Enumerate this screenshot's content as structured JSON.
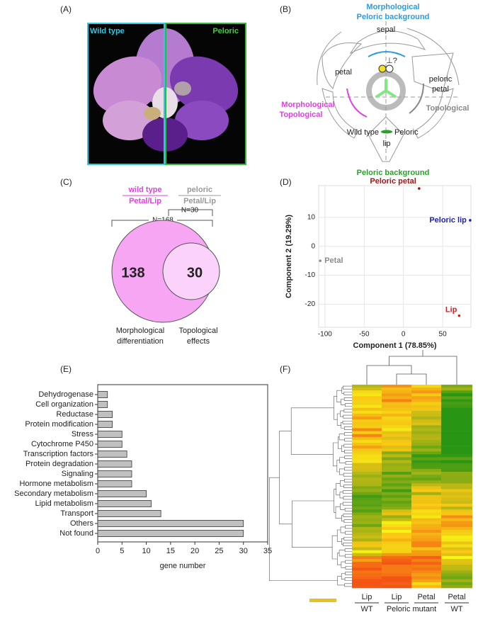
{
  "panel_labels": [
    "(A)",
    "(B)",
    "(C)",
    "(D)",
    "(E)",
    "(F)"
  ],
  "panel_a": {
    "labels": [
      "Wild type",
      "Peloric"
    ]
  },
  "panel_b": {
    "top_title": [
      "Morphological",
      "Peloric background"
    ],
    "sepal": "sepal",
    "peloric_petal": [
      "peloric",
      "petal"
    ],
    "petal": "petal",
    "perp": "⊥?",
    "morph_topo": [
      "Morphological",
      "Topological"
    ],
    "topological": "Topological",
    "wild_type": "Wild type",
    "peloric": "Peloric",
    "lip": "lip",
    "bottom_title": "Peloric background"
  },
  "chart_data": [
    {
      "type": "venn",
      "sets": [
        {
          "name": "wild type",
          "sublabel": "Petal/Lip",
          "color": "#f7a6f4",
          "n_label": "N=168"
        },
        {
          "name": "peloric",
          "sublabel": "Petal/Lip",
          "color": "#fbd3fa",
          "n_label": "N=30"
        }
      ],
      "values": [
        138,
        30
      ],
      "captions": [
        [
          "Morphological",
          "differentiation"
        ],
        [
          "Topological",
          "effects"
        ]
      ]
    },
    {
      "type": "scatter",
      "xlabel": "Component 1 (78.85%)",
      "ylabel": "Component 2 (19.29%)",
      "xlim": [
        -108,
        86
      ],
      "ylim": [
        -28,
        21
      ],
      "xticks": [
        -100,
        -50,
        0,
        50
      ],
      "yticks": [
        -20,
        -10,
        0,
        10
      ],
      "grid": true,
      "series": [
        {
          "name": "Petal",
          "color": "#8c8c8c",
          "x": [
            -106
          ],
          "values": [
            -5
          ]
        },
        {
          "name": "Peloric petal",
          "color": "#a31515",
          "x": [
            20
          ],
          "values": [
            20
          ]
        },
        {
          "name": "Peloric lip",
          "color": "#1f1fb4",
          "x": [
            85
          ],
          "values": [
            9
          ]
        },
        {
          "name": "Lip",
          "color": "#d81b1b",
          "x": [
            71
          ],
          "values": [
            -24
          ]
        }
      ]
    },
    {
      "type": "bar",
      "orientation": "horizontal",
      "xlabel": "gene number",
      "categories": [
        "Dehydrogenase",
        "Cell organization",
        "Reductase",
        "Protein modification",
        "Stress",
        "Cytochrome P450",
        "Transcription factors",
        "Protein degradation",
        "Signaling",
        "Hormone metabolism",
        "Secondary metabolism",
        "Lipid metabolism",
        "Transport",
        "Others",
        "Not found"
      ],
      "values": [
        2,
        2,
        3,
        3,
        5,
        5,
        6,
        7,
        7,
        7,
        10,
        11,
        13,
        30,
        30
      ],
      "color": "#c0c0c0",
      "xlim": [
        0,
        35
      ],
      "xticks": [
        0,
        5,
        10,
        15,
        20,
        25,
        30,
        35
      ]
    }
  ],
  "panel_f": {
    "columns": [
      "Lip",
      "Lip",
      "Petal",
      "Petal"
    ],
    "groups": [
      "WT",
      "Peloric mutant",
      "WT"
    ]
  }
}
